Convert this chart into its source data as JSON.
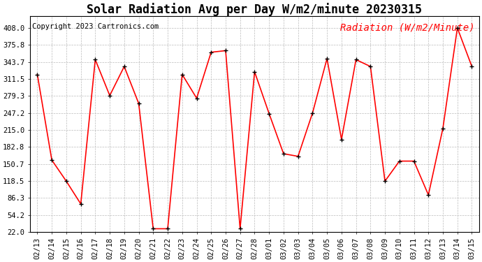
{
  "title": "Solar Radiation Avg per Day W/m2/minute 20230315",
  "copyright_text": "Copyright 2023 Cartronics.com",
  "legend_label": "Radiation (W/m2/Minute)",
  "dates": [
    "02/13",
    "02/14",
    "02/15",
    "02/16",
    "02/17",
    "02/18",
    "02/19",
    "02/20",
    "02/21",
    "02/22",
    "02/23",
    "02/24",
    "02/25",
    "02/26",
    "02/27",
    "02/28",
    "03/01",
    "03/02",
    "03/03",
    "03/04",
    "03/05",
    "03/06",
    "03/07",
    "03/08",
    "03/09",
    "03/10",
    "03/11",
    "03/12",
    "03/13",
    "03/14",
    "03/15"
  ],
  "values": [
    320.0,
    158.0,
    118.0,
    75.0,
    348.0,
    280.0,
    335.0,
    265.0,
    28.0,
    28.0,
    320.0,
    275.0,
    362.0,
    365.0,
    28.0,
    325.0,
    246.0,
    170.0,
    165.0,
    247.0,
    350.0,
    197.0,
    348.0,
    335.0,
    118.0,
    156.0,
    156.0,
    92.0,
    218.0,
    408.0,
    335.0
  ],
  "line_color": "red",
  "marker_color": "black",
  "background_color": "#ffffff",
  "grid_color": "#bbbbbb",
  "yticks": [
    22.0,
    54.2,
    86.3,
    118.5,
    150.7,
    182.8,
    215.0,
    247.2,
    279.3,
    311.5,
    343.7,
    375.8,
    408.0
  ],
  "ylim": [
    22.0,
    430.0
  ],
  "title_fontsize": 12,
  "copyright_fontsize": 7.5,
  "legend_fontsize": 10,
  "tick_fontsize": 7.5
}
